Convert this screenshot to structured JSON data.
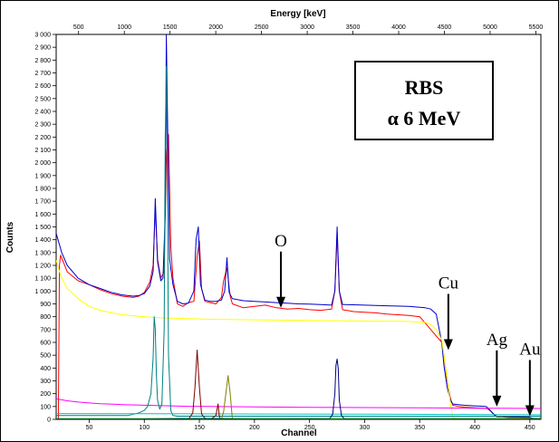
{
  "chart_data": {
    "type": "line",
    "top_axis_title": "Energy [keV]",
    "ylabel": "Counts",
    "xlabel": "Channel",
    "xlim": [
      20,
      460
    ],
    "ylim": [
      0,
      3000
    ],
    "energy_lim": [
      255,
      5555
    ],
    "x_ticks": [
      50,
      100,
      150,
      200,
      250,
      300,
      350,
      400,
      450
    ],
    "y_ticks": [
      0,
      100,
      200,
      300,
      400,
      500,
      600,
      700,
      800,
      900,
      1000,
      1100,
      1200,
      1300,
      1400,
      1500,
      1600,
      1700,
      1800,
      1900,
      2000,
      2100,
      2200,
      2300,
      2400,
      2500,
      2600,
      2700,
      2800,
      2900,
      3000
    ],
    "y_tick_labels": [
      "0",
      "100",
      "200",
      "300",
      "400",
      "500",
      "600",
      "700",
      "800",
      "900",
      "1 000",
      "1 100",
      "1 200",
      "1 300",
      "1 400",
      "1 500",
      "1 600",
      "1 700",
      "1 800",
      "1 900",
      "2 000",
      "2 100",
      "2 200",
      "2 300",
      "2 400",
      "2 500",
      "2 600",
      "2 700",
      "2 800",
      "2 900",
      "3 000"
    ],
    "energy_ticks": [
      500,
      1000,
      1500,
      2000,
      2500,
      3000,
      3500,
      4000,
      4500,
      5000,
      5500
    ],
    "inset_box": {
      "line1": "RBS",
      "line2": "α 6 MeV"
    },
    "annotations": [
      {
        "text": "O",
        "x": 224,
        "y": 870
      },
      {
        "text": "Cu",
        "x": 376,
        "y": 540
      },
      {
        "text": "Ag",
        "x": 420,
        "y": 100
      },
      {
        "text": "Au",
        "x": 450,
        "y": 25
      }
    ],
    "series": [
      {
        "color": "#ff0000",
        "x": [
          20,
          22,
          23,
          24,
          30,
          40,
          50,
          60,
          70,
          80,
          90,
          95,
          100,
          105,
          108,
          110,
          112,
          115,
          118,
          120,
          122,
          124,
          126,
          130,
          135,
          140,
          145,
          148,
          150,
          152,
          155,
          160,
          165,
          170,
          172,
          175,
          178,
          180,
          190,
          200,
          210,
          220,
          230,
          240,
          250,
          260,
          270,
          273,
          275,
          277,
          280,
          290,
          300,
          310,
          320,
          330,
          340,
          350,
          360,
          365,
          370,
          372,
          375,
          378,
          380,
          385,
          390,
          400,
          410,
          412,
          415,
          418,
          420,
          425,
          430,
          440,
          448,
          450,
          452,
          455,
          460
        ],
        "y": [
          0,
          0,
          1200,
          1280,
          1150,
          1080,
          1050,
          1010,
          980,
          960,
          950,
          960,
          990,
          1070,
          1200,
          1640,
          1250,
          1100,
          1150,
          2060,
          2220,
          1350,
          1100,
          900,
          880,
          910,
          920,
          1270,
          1390,
          1020,
          920,
          910,
          900,
          950,
          1080,
          1180,
          960,
          900,
          870,
          880,
          890,
          870,
          860,
          865,
          855,
          850,
          860,
          1000,
          1440,
          1000,
          855,
          840,
          835,
          830,
          820,
          815,
          810,
          800,
          700,
          650,
          600,
          500,
          300,
          160,
          110,
          100,
          95,
          90,
          85,
          80,
          60,
          30,
          20,
          20,
          15,
          15,
          12,
          8,
          5,
          5,
          5
        ]
      },
      {
        "color": "#0000cc",
        "x": [
          20,
          25,
          30,
          40,
          50,
          60,
          70,
          80,
          90,
          95,
          100,
          105,
          108,
          110,
          112,
          115,
          117,
          119,
          120,
          121,
          123,
          126,
          130,
          135,
          140,
          145,
          147,
          149,
          151,
          155,
          160,
          165,
          170,
          173,
          175,
          177,
          180,
          190,
          200,
          210,
          220,
          230,
          240,
          250,
          260,
          270,
          273,
          275,
          277,
          280,
          300,
          320,
          340,
          355,
          360,
          365,
          370,
          372,
          375,
          378,
          380,
          385,
          390,
          400,
          410,
          412,
          415,
          418,
          420,
          425,
          430,
          440,
          448,
          450,
          452,
          455,
          460
        ],
        "y": [
          1450,
          1300,
          1200,
          1100,
          1050,
          1020,
          990,
          970,
          960,
          965,
          980,
          1040,
          1150,
          1720,
          1230,
          1080,
          1100,
          1600,
          3000,
          2400,
          1250,
          1050,
          920,
          900,
          905,
          1000,
          1400,
          1500,
          1050,
          930,
          920,
          920,
          930,
          1000,
          1260,
          990,
          940,
          925,
          920,
          915,
          910,
          905,
          900,
          898,
          895,
          890,
          1000,
          1500,
          1000,
          895,
          890,
          885,
          880,
          870,
          860,
          820,
          600,
          420,
          250,
          150,
          120,
          115,
          110,
          105,
          100,
          90,
          60,
          35,
          25,
          25,
          22,
          20,
          20,
          15,
          10,
          8,
          8
        ]
      },
      {
        "color": "#ffff00",
        "x": [
          20,
          22,
          25,
          30,
          40,
          50,
          60,
          70,
          80,
          100,
          120,
          140,
          160,
          180,
          200,
          220,
          240,
          260,
          280,
          300,
          320,
          340,
          355,
          360,
          365,
          370,
          372,
          375,
          378,
          380,
          385,
          460
        ],
        "y": [
          1240,
          1180,
          1100,
          1020,
          940,
          880,
          850,
          830,
          815,
          800,
          790,
          785,
          780,
          778,
          776,
          774,
          772,
          770,
          768,
          766,
          765,
          763,
          755,
          740,
          700,
          620,
          500,
          320,
          120,
          15,
          5,
          5
        ]
      },
      {
        "color": "#ff00ff",
        "x": [
          20,
          30,
          40,
          50,
          60,
          80,
          100,
          120,
          140,
          160,
          200,
          250,
          300,
          350,
          380,
          400,
          420,
          460
        ],
        "y": [
          160,
          145,
          135,
          128,
          122,
          115,
          110,
          106,
          102,
          100,
          97,
          94,
          92,
          90,
          88,
          87,
          86,
          85
        ]
      },
      {
        "color": "#008080",
        "x": [
          20,
          80,
          85,
          90,
          95,
          100,
          103,
          106,
          108,
          109,
          110,
          111,
          112,
          114,
          116,
          118,
          119,
          120,
          121,
          122,
          124,
          126,
          130,
          460
        ],
        "y": [
          30,
          30,
          30,
          40,
          50,
          70,
          100,
          200,
          480,
          800,
          700,
          350,
          150,
          80,
          120,
          700,
          2200,
          2750,
          1800,
          500,
          70,
          30,
          25,
          25
        ]
      },
      {
        "color": "#00bfbf",
        "x": [
          20,
          100,
          200,
          300,
          400,
          460
        ],
        "y": [
          45,
          44,
          42,
          40,
          38,
          36
        ]
      },
      {
        "color": "#800000",
        "x": [
          20,
          130,
          140,
          144,
          146,
          148,
          150,
          152,
          156,
          160,
          165,
          167,
          168,
          169,
          171,
          175,
          460
        ],
        "y": [
          0,
          0,
          0,
          50,
          250,
          540,
          250,
          40,
          0,
          0,
          30,
          120,
          30,
          0,
          0,
          0,
          0
        ]
      },
      {
        "color": "#808000",
        "x": [
          20,
          170,
          172,
          174,
          176,
          178,
          180,
          460
        ],
        "y": [
          0,
          0,
          60,
          200,
          340,
          200,
          0,
          0
        ]
      },
      {
        "color": "#000080",
        "x": [
          20,
          268,
          271,
          273,
          274,
          275,
          276,
          277,
          279,
          282,
          460
        ],
        "y": [
          0,
          0,
          40,
          200,
          420,
          470,
          400,
          150,
          30,
          0,
          0
        ]
      },
      {
        "color": "#008000",
        "x": [
          20,
          100,
          150,
          200,
          250,
          300,
          350,
          400,
          460
        ],
        "y": [
          5,
          5,
          8,
          5,
          6,
          5,
          5,
          5,
          5
        ]
      }
    ]
  }
}
